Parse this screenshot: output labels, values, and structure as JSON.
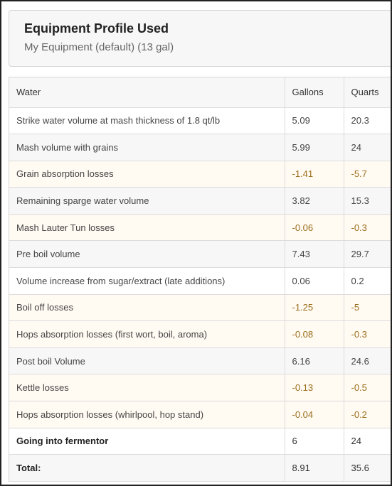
{
  "profile": {
    "title": "Equipment Profile Used",
    "subtitle": "My Equipment (default) (13 gal)"
  },
  "table": {
    "headers": [
      "Water",
      "Gallons",
      "Quarts"
    ],
    "rows": [
      {
        "label": "Strike water volume at mash thickness of 1.8 qt/lb",
        "gallons": "5.09",
        "quarts": "20.3",
        "loss": false
      },
      {
        "label": "Mash volume with grains",
        "gallons": "5.99",
        "quarts": "24",
        "loss": false
      },
      {
        "label": "Grain absorption losses",
        "gallons": "-1.41",
        "quarts": "-5.7",
        "loss": true
      },
      {
        "label": "Remaining sparge water volume",
        "gallons": "3.82",
        "quarts": "15.3",
        "loss": false
      },
      {
        "label": "Mash Lauter Tun losses",
        "gallons": "-0.06",
        "quarts": "-0.3",
        "loss": true
      },
      {
        "label": "Pre boil volume",
        "gallons": "7.43",
        "quarts": "29.7",
        "loss": false
      },
      {
        "label": "Volume increase from sugar/extract (late additions)",
        "gallons": "0.06",
        "quarts": "0.2",
        "loss": false
      },
      {
        "label": "Boil off losses",
        "gallons": "-1.25",
        "quarts": "-5",
        "loss": true
      },
      {
        "label": "Hops absorption losses (first wort, boil, aroma)",
        "gallons": "-0.08",
        "quarts": "-0.3",
        "loss": true
      },
      {
        "label": "Post boil Volume",
        "gallons": "6.16",
        "quarts": "24.6",
        "loss": false
      },
      {
        "label": "Kettle losses",
        "gallons": "-0.13",
        "quarts": "-0.5",
        "loss": true
      },
      {
        "label": "Hops absorption losses (whirlpool, hop stand)",
        "gallons": "-0.04",
        "quarts": "-0.2",
        "loss": true
      },
      {
        "label": "Going into fermentor",
        "gallons": "6",
        "quarts": "24",
        "loss": false,
        "bold": true
      },
      {
        "label": "Total:",
        "gallons": "8.91",
        "quarts": "35.6",
        "loss": false,
        "bold": true
      }
    ]
  }
}
